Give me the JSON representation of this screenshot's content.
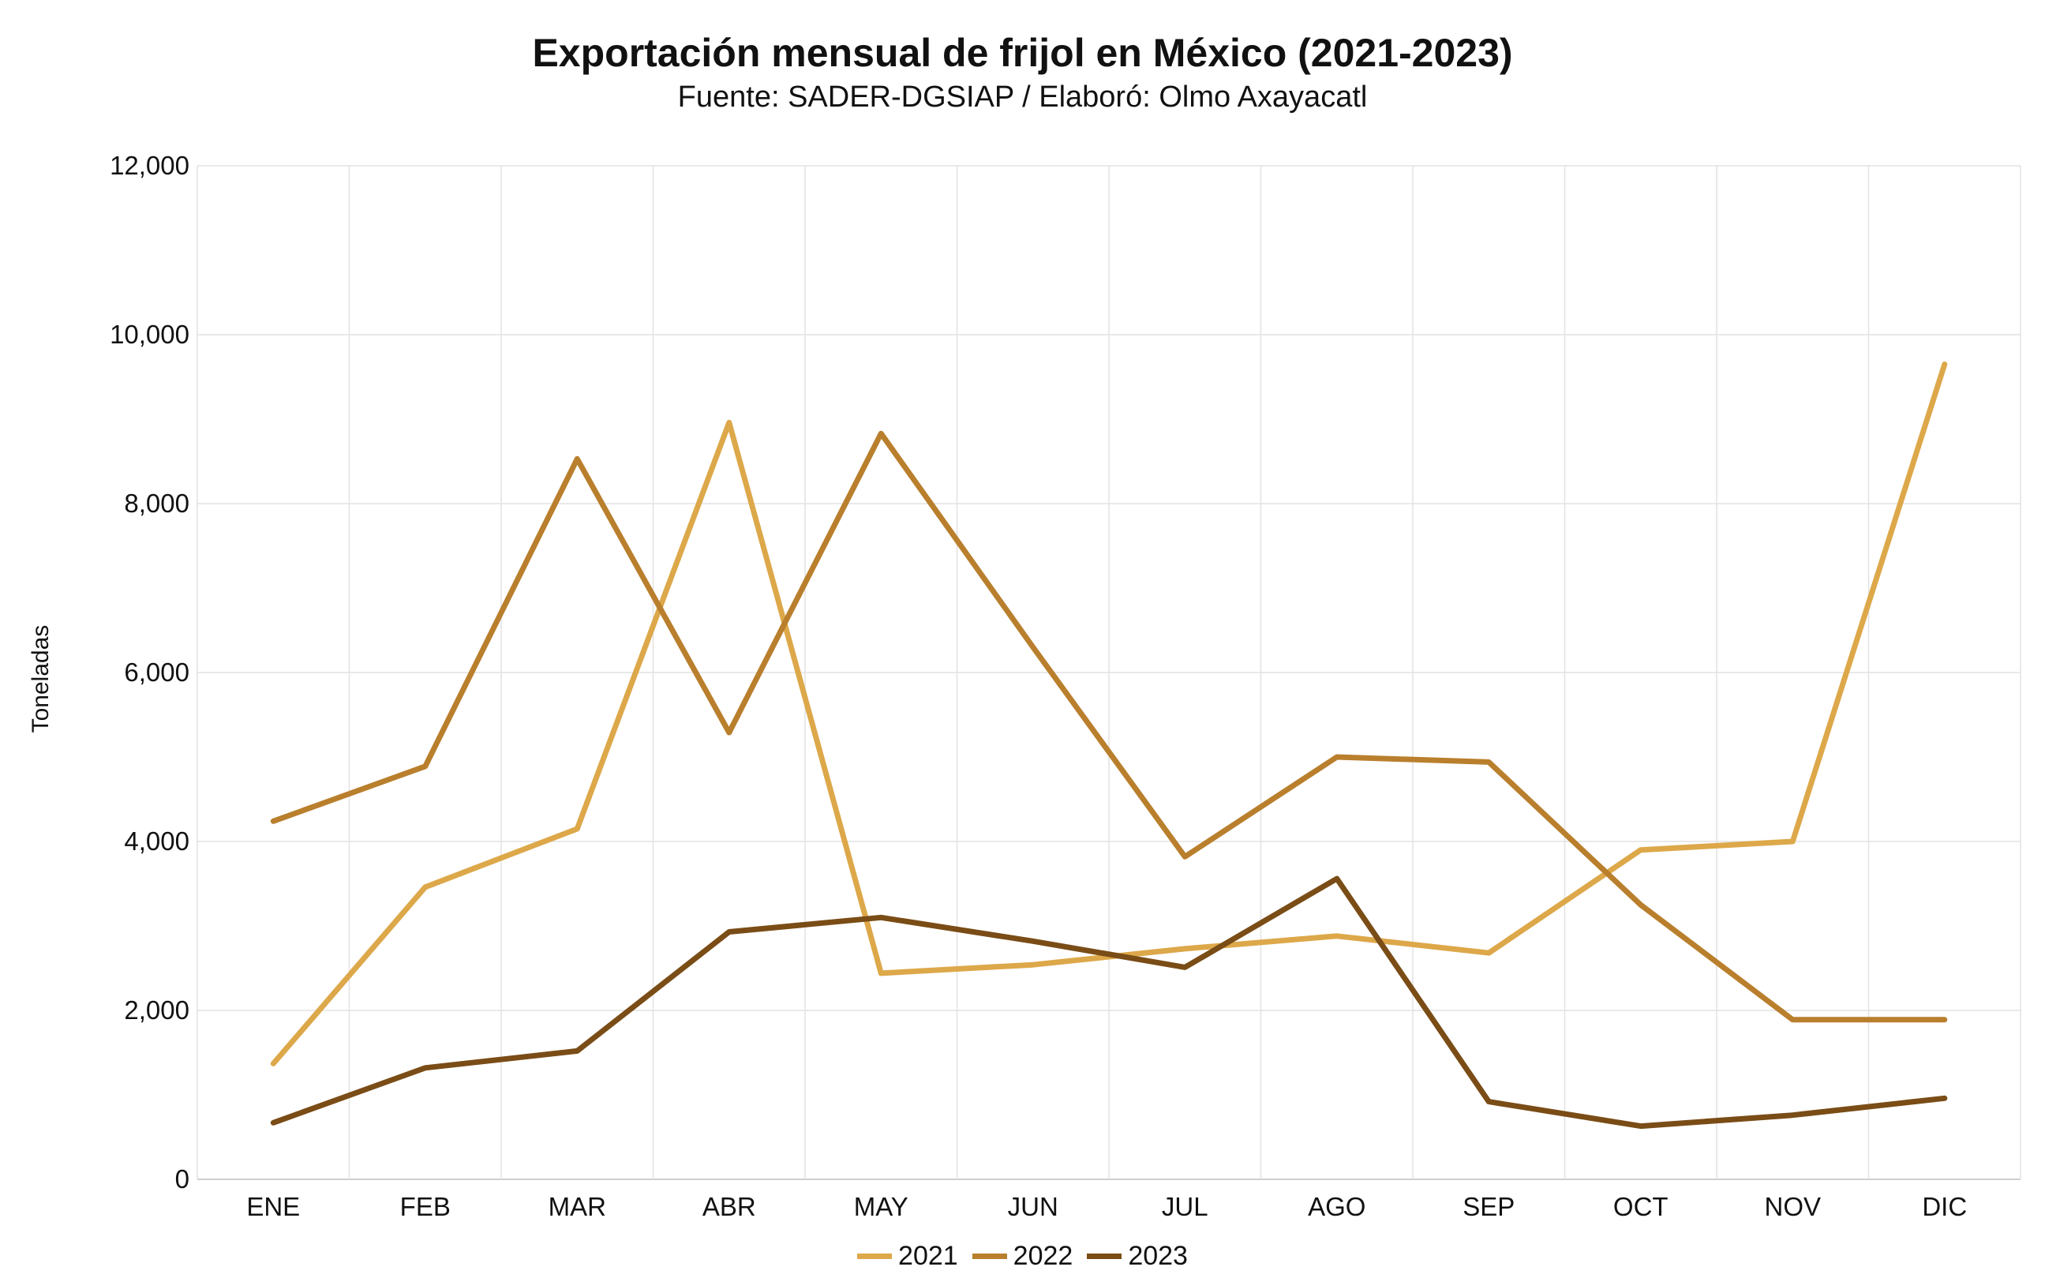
{
  "chart_data": {
    "type": "line",
    "title": "Exportación mensual de frijol en México (2021-2023)",
    "subtitle": "Fuente: SADER-DGSIAP / Elaboró: Olmo Axayacatl",
    "xlabel": "",
    "ylabel": "Toneladas",
    "ylim": [
      0,
      12000
    ],
    "yticks": [
      0,
      2000,
      4000,
      6000,
      8000,
      10000,
      12000
    ],
    "ytick_labels": [
      "0",
      "2,000",
      "4,000",
      "6,000",
      "8,000",
      "10,000",
      "12,000"
    ],
    "categories": [
      "ENE",
      "FEB",
      "MAR",
      "ABR",
      "MAY",
      "JUN",
      "JUL",
      "AGO",
      "SEP",
      "OCT",
      "NOV",
      "DIC"
    ],
    "grid": true,
    "legend_position": "bottom-center",
    "series": [
      {
        "name": "2021",
        "color": "#DDA84A",
        "values": [
          1370,
          3460,
          4150,
          8960,
          2440,
          2540,
          2730,
          2880,
          2680,
          3900,
          4000,
          9650
        ]
      },
      {
        "name": "2022",
        "color": "#B97F2D",
        "values": [
          4240,
          4890,
          8530,
          5290,
          8830,
          6300,
          3820,
          5000,
          4940,
          3250,
          1890,
          1890
        ]
      },
      {
        "name": "2023",
        "color": "#7A4C16",
        "values": [
          670,
          1320,
          1520,
          2930,
          3100,
          2820,
          2510,
          3560,
          920,
          630,
          760,
          960
        ]
      }
    ]
  }
}
